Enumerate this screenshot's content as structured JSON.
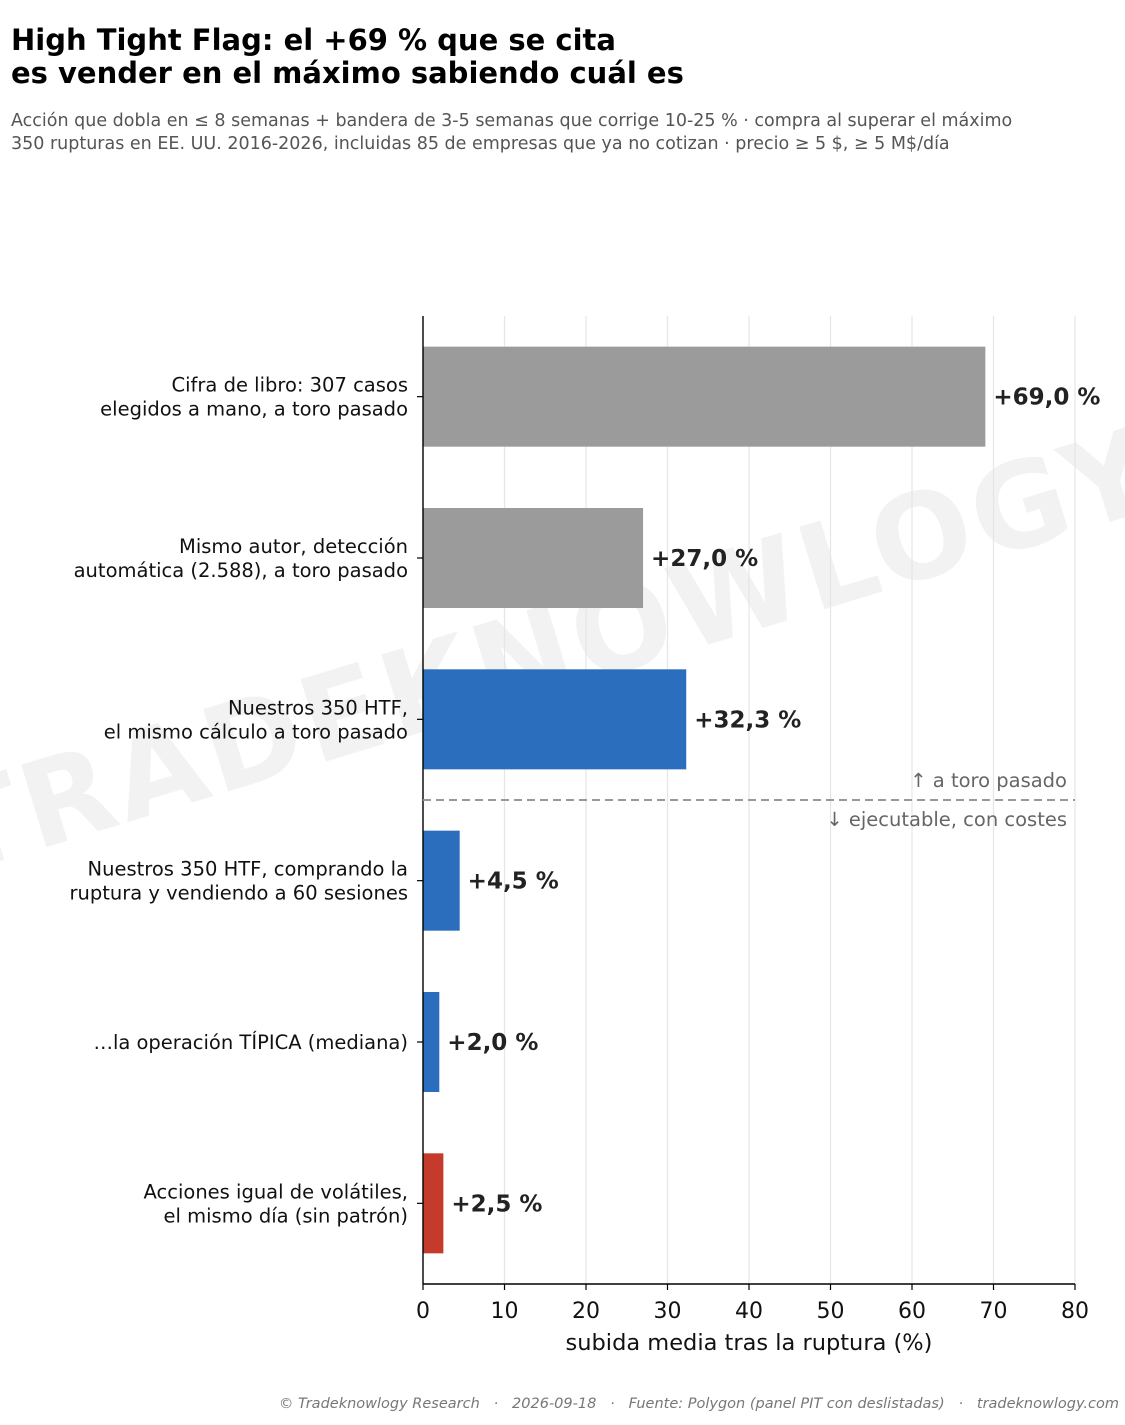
{
  "title_lines": [
    "High Tight Flag: el +69 % que se cita",
    "es vender en el máximo sabiendo cuál es"
  ],
  "subtitle_lines": [
    "Acción que dobla en ≤ 8 semanas + bandera de 3-5 semanas que corrige 10-25 % · compra al superar el máximo",
    "350 rupturas en EE. UU. 2016-2026, incluidas 85 de empresas que ya no cotizan · precio ≥ 5 $, ≥ 5 M$/día"
  ],
  "watermark": "TRADEKNOWLOGY",
  "footer": "© Tradeknowlogy Research   ·   2026-09-18   ·   Fuente: Polygon (panel PIT con deslistadas)   ·   tradeknowlogy.com",
  "colors": {
    "gray": "#9b9b9b",
    "blue": "#2a6ebd",
    "red": "#c53b2b"
  },
  "chart_data": {
    "type": "bar",
    "orientation": "horizontal",
    "xlabel": "subida media tras la ruptura (%)",
    "xlim": [
      0,
      80
    ],
    "xticks": [
      0,
      10,
      20,
      30,
      40,
      50,
      60,
      70,
      80
    ],
    "grid": "vertical",
    "bars": [
      {
        "label_lines": [
          "Cifra de libro: 307 casos",
          "elegidos a mano, a toro pasado"
        ],
        "value": 69.0,
        "value_label": "+69,0 %",
        "color": "gray"
      },
      {
        "label_lines": [
          "Mismo autor, detección",
          "automática (2.588), a toro pasado"
        ],
        "value": 27.0,
        "value_label": "+27,0 %",
        "color": "gray"
      },
      {
        "label_lines": [
          "Nuestros 350 HTF,",
          "el mismo cálculo a toro pasado"
        ],
        "value": 32.3,
        "value_label": "+32,3 %",
        "color": "blue"
      },
      {
        "label_lines": [
          "Nuestros 350 HTF, comprando la",
          "ruptura y vendiendo a 60 sesiones"
        ],
        "value": 4.5,
        "value_label": "+4,5 %",
        "color": "blue"
      },
      {
        "label_lines": [
          "…la operación TÍPICA (mediana)"
        ],
        "value": 2.0,
        "value_label": "+2,0 %",
        "color": "blue"
      },
      {
        "label_lines": [
          "Acciones igual de volátiles,",
          "el mismo día (sin patrón)"
        ],
        "value": 2.5,
        "value_label": "+2,5 %",
        "color": "red"
      }
    ],
    "divider": {
      "after_bar": 3,
      "above_label": "↑ a toro pasado",
      "below_label": "↓ ejecutable, con costes"
    }
  }
}
